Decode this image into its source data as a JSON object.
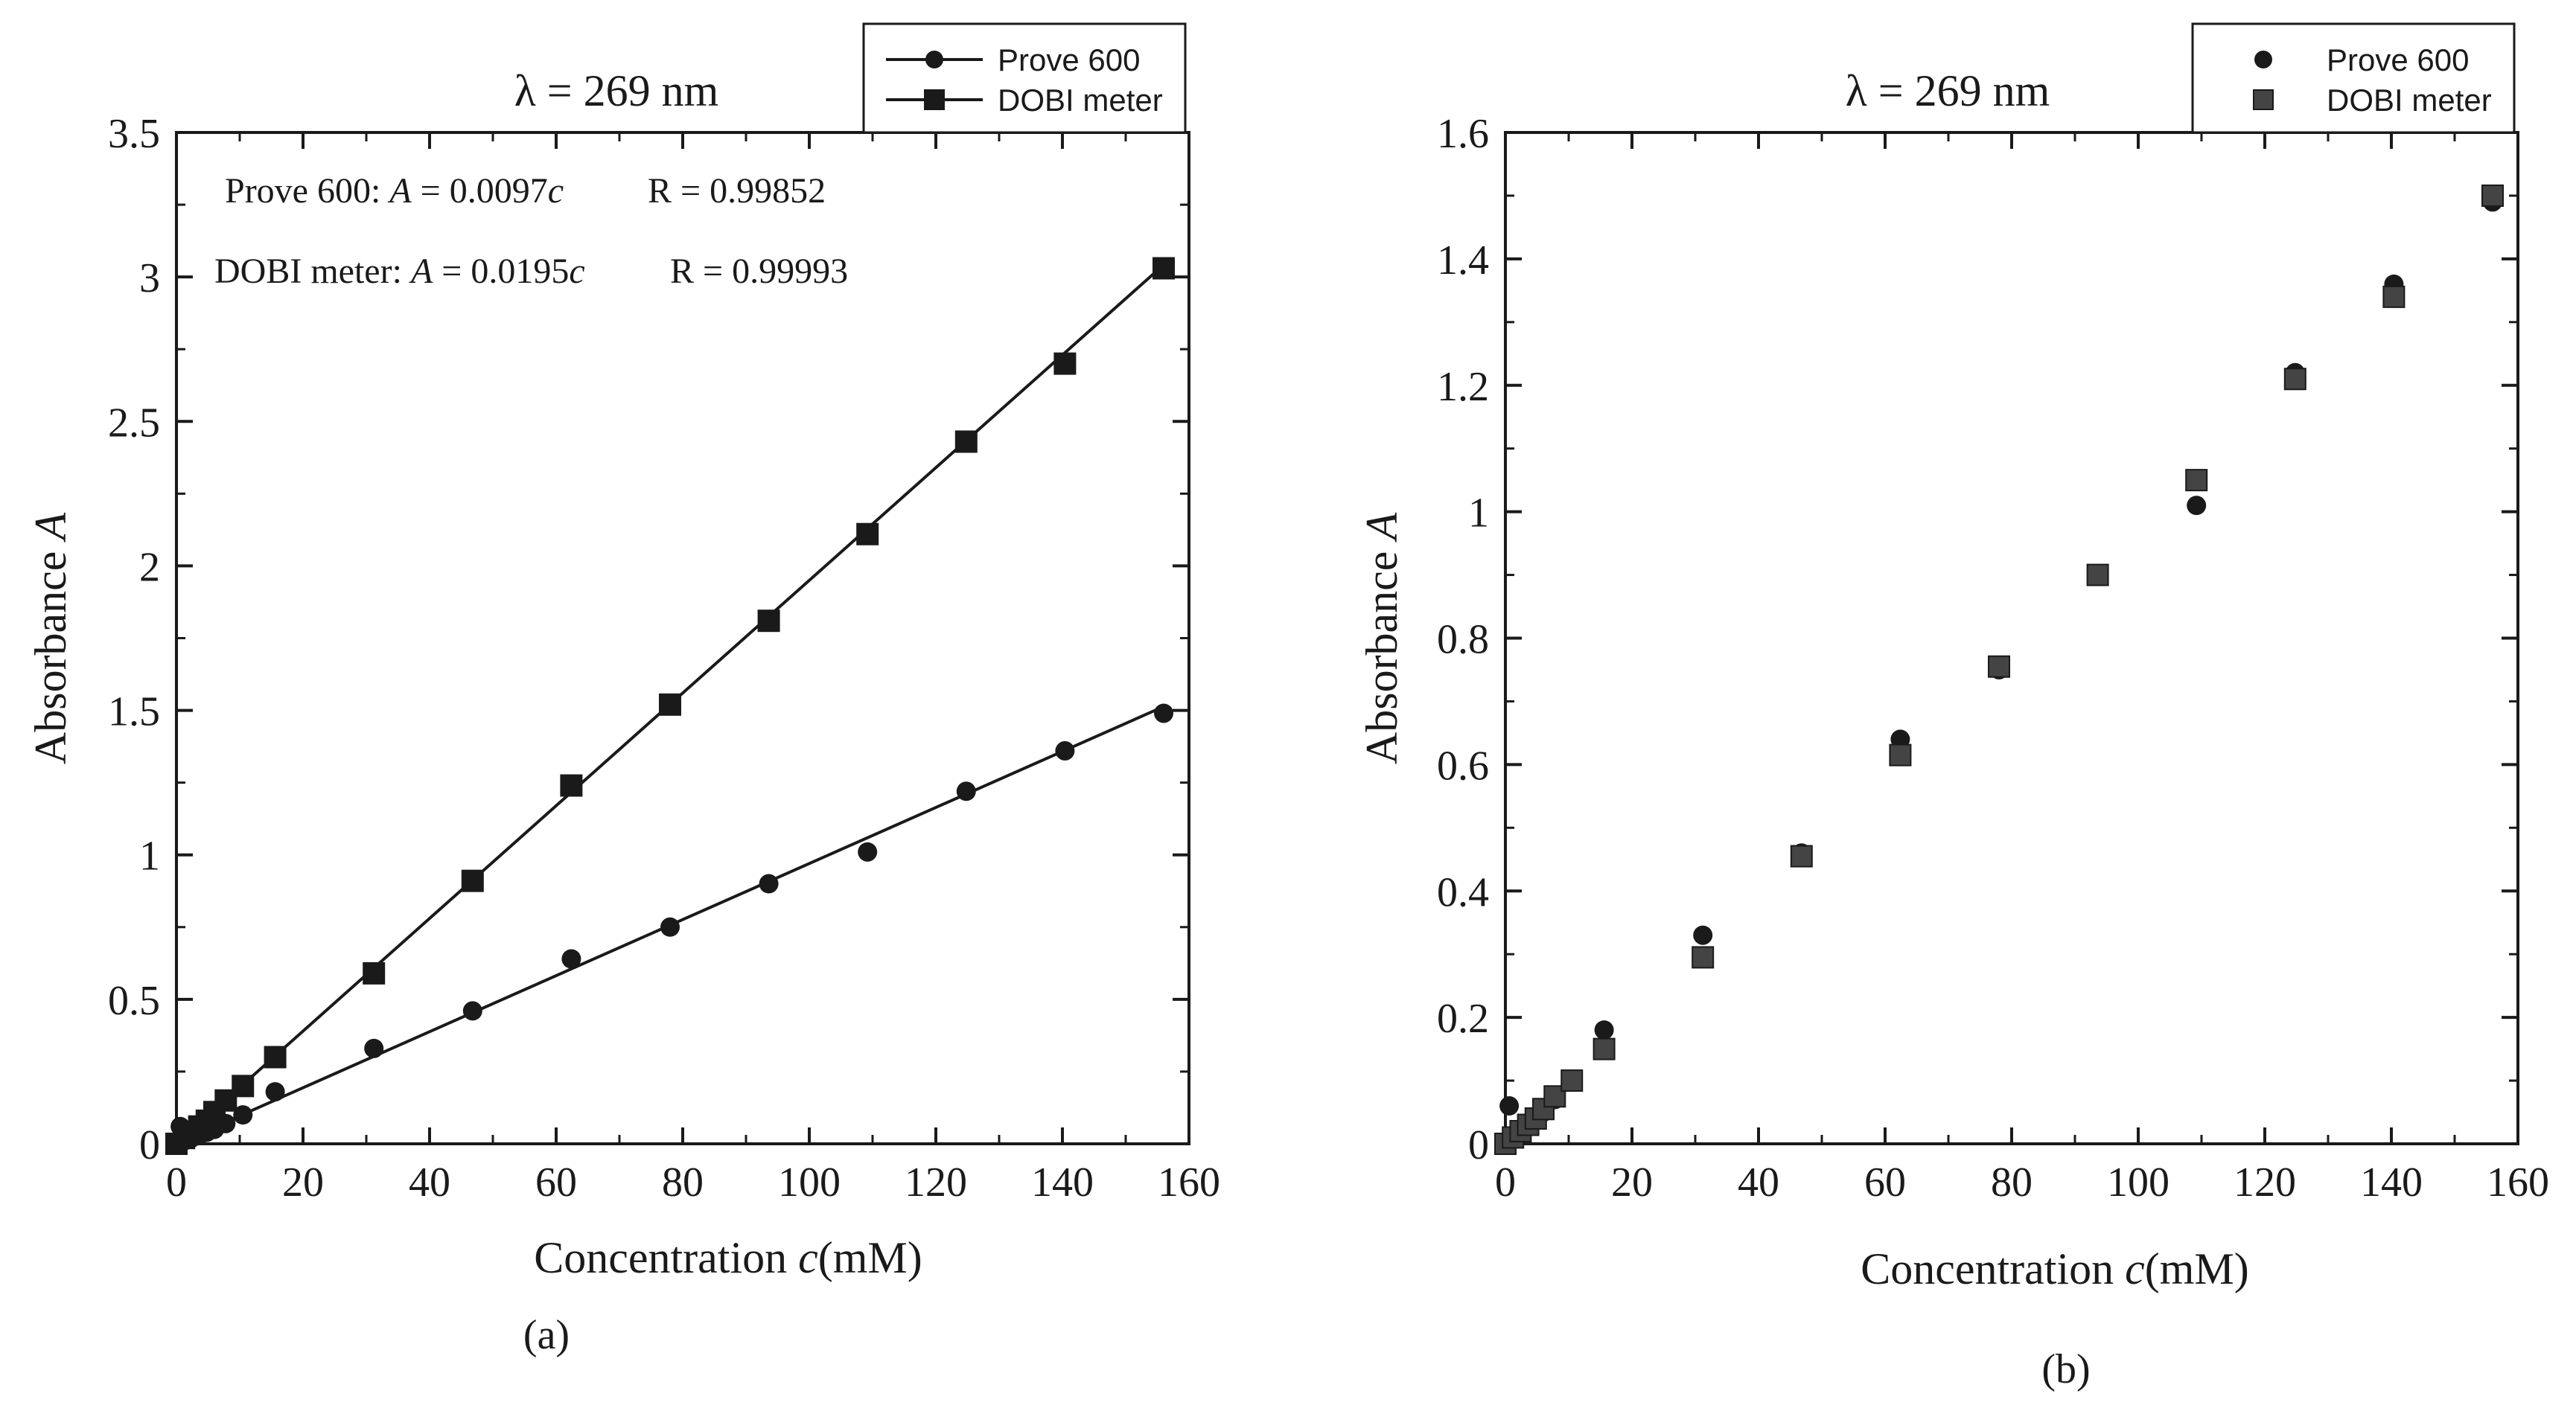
{
  "chart_data": [
    {
      "type": "scatter",
      "panel_label": "(a)",
      "title": "λ = 269 nm",
      "xlabel": "Concentration",
      "xlabel_var": "c",
      "xlabel_unit": "(mM)",
      "ylabel": "Absorbance",
      "ylabel_var": "A",
      "xlim": [
        0,
        160
      ],
      "ylim": [
        0,
        3.5
      ],
      "xticks": [
        0,
        20,
        40,
        60,
        80,
        100,
        120,
        140,
        160
      ],
      "xtick_labels": [
        "0",
        "20",
        "40",
        "60",
        "80",
        "100",
        "120",
        "140",
        "160"
      ],
      "yticks": [
        0,
        0.5,
        1,
        1.5,
        2,
        2.5,
        3,
        3.5
      ],
      "ytick_labels": [
        "0",
        "0.5",
        "1",
        "1.5",
        "2",
        "2.5",
        "3",
        "3.5"
      ],
      "legend_position": "top-right",
      "annotations": [
        {
          "name": "Prove 600",
          "var": "A",
          "eq": " = 0.0097",
          "coef_var": "c",
          "r": "R = 0.99852"
        },
        {
          "name": "DOBI meter",
          "var": "A",
          "eq": " = 0.0195",
          "coef_var": "c",
          "r": "R = 0.99993"
        }
      ],
      "series": [
        {
          "name": "Prove 600",
          "marker": "circle",
          "fit_line": true,
          "fit_slope": 0.0097,
          "x": [
            0,
            0.6,
            1.2,
            2.4,
            3.6,
            4.8,
            6.0,
            7.8,
            10.5,
            15.6,
            31.2,
            46.8,
            62.4,
            78,
            93.6,
            109.2,
            124.8,
            140.4,
            156
          ],
          "y": [
            0,
            0.06,
            0.01,
            0.02,
            0.03,
            0.04,
            0.05,
            0.07,
            0.1,
            0.18,
            0.33,
            0.46,
            0.64,
            0.75,
            0.9,
            1.01,
            1.22,
            1.36,
            1.49
          ]
        },
        {
          "name": "DOBI meter",
          "marker": "square",
          "fit_line": true,
          "fit_slope": 0.0195,
          "x": [
            0,
            1.2,
            2.4,
            3.6,
            4.8,
            6.0,
            7.8,
            10.5,
            15.6,
            31.2,
            46.8,
            62.4,
            78,
            93.6,
            109.2,
            124.8,
            140.4,
            156
          ],
          "y": [
            0,
            0.02,
            0.04,
            0.06,
            0.08,
            0.11,
            0.15,
            0.2,
            0.3,
            0.59,
            0.91,
            1.24,
            1.52,
            1.81,
            2.11,
            2.43,
            2.7,
            3.03
          ]
        }
      ]
    },
    {
      "type": "scatter",
      "panel_label": "(b)",
      "title": "λ = 269 nm",
      "xlabel": "Concentration",
      "xlabel_var": "c",
      "xlabel_unit": "(mM)",
      "ylabel": "Absorbance",
      "ylabel_var": "A",
      "xlim": [
        0,
        160
      ],
      "ylim": [
        0,
        1.6
      ],
      "xticks": [
        0,
        20,
        40,
        60,
        80,
        100,
        120,
        140,
        160
      ],
      "xtick_labels": [
        "0",
        "20",
        "40",
        "60",
        "80",
        "100",
        "120",
        "140",
        "160"
      ],
      "yticks": [
        0,
        0.2,
        0.4,
        0.6,
        0.8,
        1.0,
        1.2,
        1.4,
        1.6
      ],
      "ytick_labels": [
        "0",
        "0.2",
        "0.4",
        "0.6",
        "0.8",
        "1",
        "1.2",
        "1.4",
        "1.6"
      ],
      "legend_position": "top-right",
      "series": [
        {
          "name": "Prove 600",
          "marker": "circle",
          "fit_line": false,
          "x": [
            0,
            0.6,
            1.2,
            2.4,
            3.6,
            4.8,
            6.0,
            7.8,
            10.5,
            15.6,
            31.2,
            46.8,
            62.4,
            78,
            93.6,
            109.2,
            124.8,
            140.4,
            156
          ],
          "y": [
            0,
            0.06,
            0.01,
            0.02,
            0.03,
            0.04,
            0.05,
            0.07,
            0.1,
            0.18,
            0.33,
            0.46,
            0.64,
            0.75,
            0.9,
            1.01,
            1.22,
            1.36,
            1.49
          ]
        },
        {
          "name": "DOBI meter",
          "marker": "square",
          "fit_line": false,
          "x": [
            0,
            1.2,
            2.4,
            3.6,
            4.8,
            6.0,
            7.8,
            10.5,
            15.6,
            31.2,
            46.8,
            62.4,
            78,
            93.6,
            109.2,
            124.8,
            140.4,
            156
          ],
          "y": [
            0,
            0.01,
            0.02,
            0.03,
            0.04,
            0.055,
            0.075,
            0.1,
            0.15,
            0.295,
            0.455,
            0.615,
            0.755,
            0.9,
            1.05,
            1.21,
            1.34,
            1.5
          ]
        }
      ]
    }
  ],
  "colors": {
    "ink": "#1a1a1a",
    "square_fill_b": "#444444"
  }
}
